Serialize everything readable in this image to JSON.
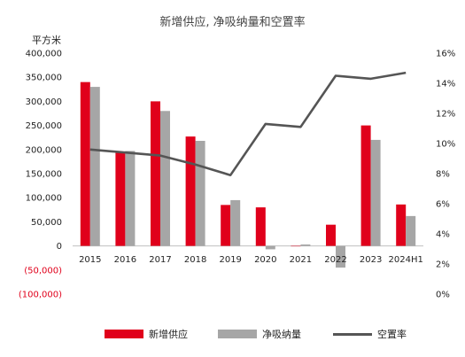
{
  "chart_data": {
    "type": "bar",
    "title": "新增供应, 净吸纳量和空置率",
    "ylabel_left": "平方米",
    "categories": [
      "2015",
      "2016",
      "2017",
      "2018",
      "2019",
      "2020",
      "2021",
      "2022",
      "2023",
      "2024H1"
    ],
    "series": [
      {
        "name": "新增供应",
        "type": "bar",
        "axis": "left",
        "color": "#e0001b",
        "values": [
          340000,
          195000,
          300000,
          227000,
          85000,
          80000,
          0,
          44000,
          250000,
          86000
        ]
      },
      {
        "name": "净吸纳量",
        "type": "bar",
        "axis": "left",
        "color": "#a6a6a6",
        "values": [
          330000,
          197000,
          280000,
          218000,
          95000,
          -7000,
          3000,
          -45000,
          220000,
          62000
        ]
      },
      {
        "name": "空置率",
        "type": "line",
        "axis": "right",
        "color": "#555555",
        "values": [
          9.6,
          9.4,
          9.2,
          8.6,
          7.9,
          11.3,
          11.1,
          14.5,
          14.3,
          14.7
        ]
      }
    ],
    "ylim_left": [
      -100000,
      400000
    ],
    "yticks_left": [
      400000,
      350000,
      300000,
      250000,
      200000,
      150000,
      100000,
      50000,
      0,
      -50000,
      -100000
    ],
    "ytick_labels_left": [
      "400,000",
      "350,000",
      "300,000",
      "250,000",
      "200,000",
      "150,000",
      "100,000",
      "50,000",
      "0",
      "(50,000)",
      "(100,000)"
    ],
    "ylim_right": [
      0,
      16
    ],
    "yticks_right": [
      16,
      14,
      12,
      10,
      8,
      6,
      4,
      2,
      0
    ],
    "ytick_labels_right": [
      "16%",
      "14%",
      "12%",
      "10%",
      "8%",
      "6%",
      "4%",
      "2%",
      "0%"
    ],
    "grid": false,
    "legend_position": "bottom"
  }
}
